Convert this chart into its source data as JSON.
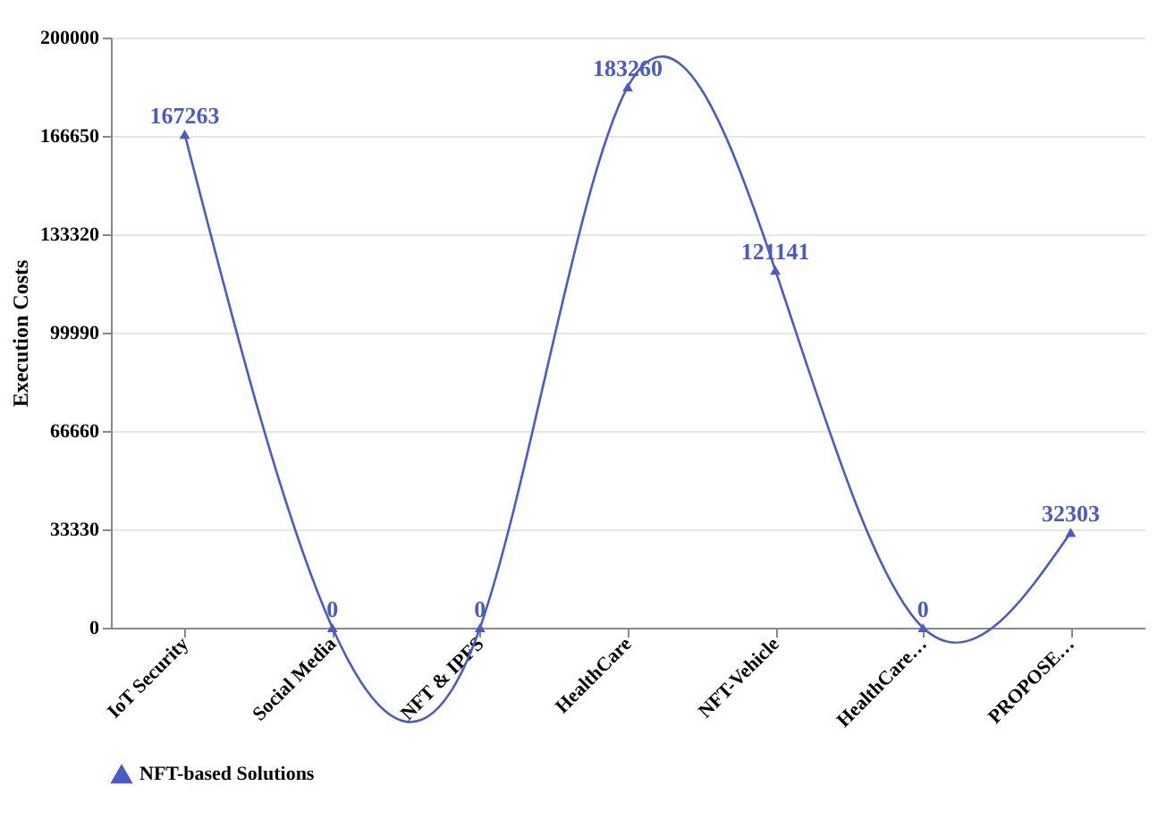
{
  "chart_data": {
    "type": "line",
    "ylabel": "Execution Costs",
    "categories": [
      "IoT Security",
      "Social Media",
      "NFT & IPFS",
      "HealthCare",
      "NFT-Vehicle",
      "HealthCare…",
      "PROPOSE…"
    ],
    "series": [
      {
        "name": "NFT-based Solutions",
        "color": "#4a5cc4",
        "values": [
          167263,
          0,
          0,
          183260,
          121141,
          0,
          32303
        ]
      }
    ],
    "ylim": [
      0,
      200000
    ],
    "yticks": [
      0,
      33330,
      66660,
      99990,
      133320,
      166650,
      200000
    ],
    "grid": "y",
    "legend": "bottom",
    "marker": "triangle",
    "line_style": "solid",
    "data_labels": true
  }
}
